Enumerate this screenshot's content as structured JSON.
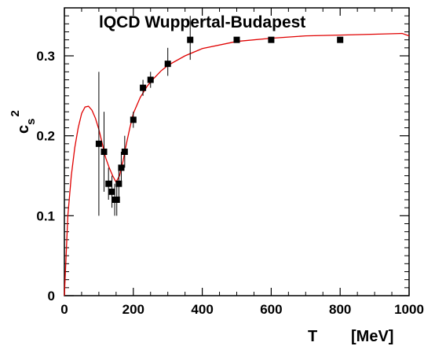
{
  "chart_data": {
    "type": "scatter",
    "title": "lQCD  Wuppertal-Budapest",
    "xlabel": "T",
    "xunit": "[MeV]",
    "ylabel_base": "c",
    "ylabel_sub": "s",
    "ylabel_sup": "2",
    "xlim": [
      0,
      1000
    ],
    "ylim": [
      0,
      0.36
    ],
    "x_ticks": [
      0,
      200,
      400,
      600,
      800,
      1000
    ],
    "x_tick_labels": [
      "0",
      "200",
      "400",
      "600",
      "800",
      "1000"
    ],
    "y_ticks": [
      0,
      0.1,
      0.2,
      0.3
    ],
    "y_tick_labels": [
      "0",
      "0.1",
      "0.2",
      "0.3"
    ],
    "grid": false,
    "series": [
      {
        "kind": "points",
        "color": "#000000",
        "points": [
          {
            "x": 100,
            "y": 0.19,
            "err_low": 0.1,
            "err_high": 0.28
          },
          {
            "x": 115,
            "y": 0.18,
            "err_low": 0.13,
            "err_high": 0.23
          },
          {
            "x": 128,
            "y": 0.14,
            "err_low": 0.12,
            "err_high": 0.16
          },
          {
            "x": 138,
            "y": 0.13,
            "err_low": 0.11,
            "err_high": 0.15
          },
          {
            "x": 146,
            "y": 0.12,
            "err_low": 0.1,
            "err_high": 0.14
          },
          {
            "x": 152,
            "y": 0.12,
            "err_low": 0.1,
            "err_high": 0.14
          },
          {
            "x": 158,
            "y": 0.14,
            "err_low": 0.12,
            "err_high": 0.16
          },
          {
            "x": 165,
            "y": 0.16,
            "err_low": 0.14,
            "err_high": 0.18
          },
          {
            "x": 175,
            "y": 0.18,
            "err_low": 0.16,
            "err_high": 0.2
          },
          {
            "x": 200,
            "y": 0.22,
            "err_low": 0.21,
            "err_high": 0.23
          },
          {
            "x": 228,
            "y": 0.26,
            "err_low": 0.25,
            "err_high": 0.27
          },
          {
            "x": 250,
            "y": 0.27,
            "err_low": 0.26,
            "err_high": 0.28
          },
          {
            "x": 300,
            "y": 0.29,
            "err_low": 0.275,
            "err_high": 0.31
          },
          {
            "x": 365,
            "y": 0.32,
            "err_low": 0.295,
            "err_high": 0.35
          },
          {
            "x": 500,
            "y": 0.32,
            "err_low": 0.32,
            "err_high": 0.32
          },
          {
            "x": 600,
            "y": 0.32,
            "err_low": 0.32,
            "err_high": 0.32
          },
          {
            "x": 800,
            "y": 0.32,
            "err_low": 0.32,
            "err_high": 0.32
          }
        ]
      },
      {
        "kind": "line",
        "color": "#e00000",
        "x": [
          0,
          10,
          20,
          30,
          40,
          50,
          60,
          70,
          80,
          90,
          100,
          110,
          120,
          130,
          140,
          150,
          160,
          170,
          180,
          190,
          200,
          220,
          240,
          260,
          280,
          300,
          350,
          400,
          500,
          600,
          700,
          800,
          900,
          980,
          1000
        ],
        "y": [
          0,
          0.1,
          0.15,
          0.185,
          0.21,
          0.228,
          0.236,
          0.237,
          0.232,
          0.222,
          0.208,
          0.19,
          0.172,
          0.16,
          0.15,
          0.142,
          0.15,
          0.168,
          0.19,
          0.21,
          0.228,
          0.248,
          0.262,
          0.272,
          0.281,
          0.288,
          0.3,
          0.309,
          0.318,
          0.322,
          0.325,
          0.326,
          0.327,
          0.328,
          0.325
        ]
      }
    ]
  }
}
